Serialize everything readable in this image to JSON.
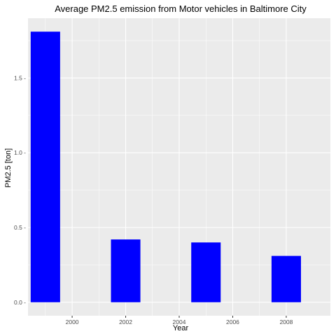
{
  "chart_data": {
    "type": "bar",
    "title": "Average PM2.5 emission from Motor vehicles in Baltimore City",
    "xlabel": "Year",
    "ylabel": "PM2.5 [ton]",
    "x": [
      1999,
      2002,
      2005,
      2008
    ],
    "values": [
      1.81,
      0.42,
      0.4,
      0.31
    ],
    "xticks": [
      2000,
      2002,
      2004,
      2006,
      2008
    ],
    "yticks": [
      0.0,
      0.5,
      1.0,
      1.5
    ],
    "ytick_labels": [
      "0.0 -",
      "0.5 -",
      "1.0 -",
      "1.5 -"
    ],
    "xlim": [
      1998.35,
      2009.65
    ],
    "ylim": [
      -0.09,
      1.9
    ],
    "grid": true,
    "bar_color": "#0000ff",
    "panel_color": "#ebebeb",
    "grid_color": "#ffffff"
  }
}
